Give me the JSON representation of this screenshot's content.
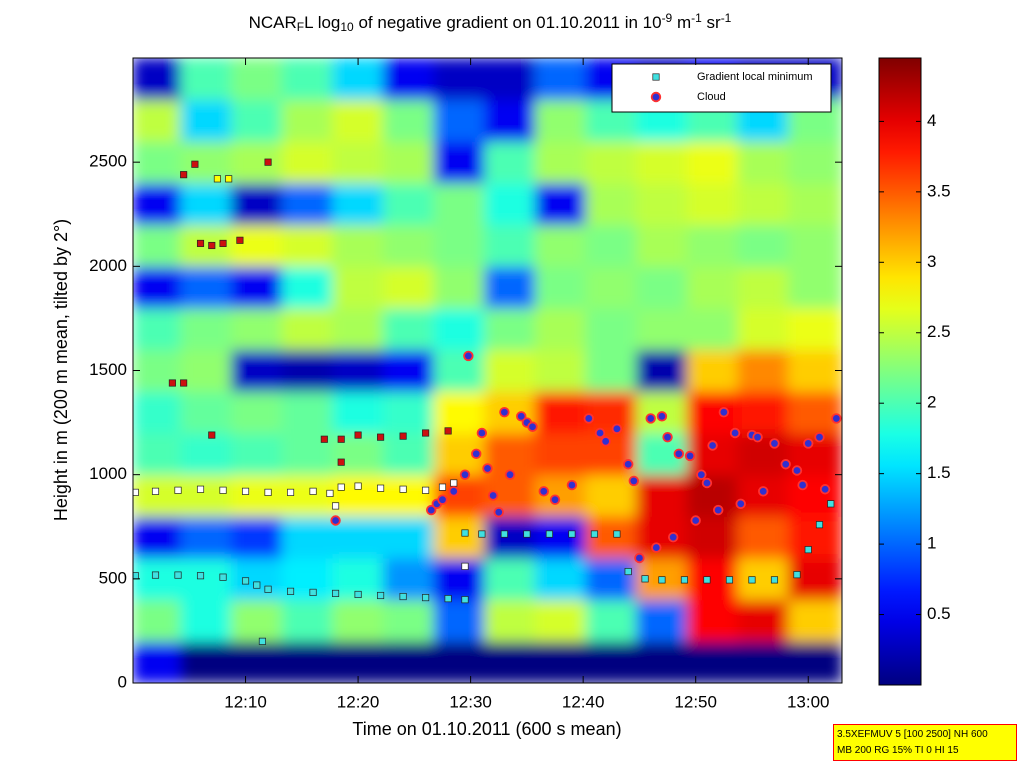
{
  "chart_data": {
    "type": "heatmap",
    "title_parts": [
      {
        "text": "NCAR"
      },
      {
        "text": "F",
        "shift": "sub"
      },
      {
        "text": "L log"
      },
      {
        "text": "10",
        "shift": "sub"
      },
      {
        "text": " of negative gradient on 01.10.2011 in 10"
      },
      {
        "text": "-9",
        "shift": "super"
      },
      {
        "text": " m"
      },
      {
        "text": "-1",
        "shift": "super"
      },
      {
        "text": " sr"
      },
      {
        "text": "-1",
        "shift": "super"
      }
    ],
    "x_label": "Time on 01.10.2011 (600 s mean)",
    "y_label": "Height in m (200 m mean, tilted by 2°)",
    "xlim": [
      720,
      783
    ],
    "xticks": [
      {
        "value": 730,
        "label": "12:10"
      },
      {
        "value": 740,
        "label": "12:20"
      },
      {
        "value": 750,
        "label": "12:30"
      },
      {
        "value": 760,
        "label": "12:40"
      },
      {
        "value": 770,
        "label": "12:50"
      },
      {
        "value": 780,
        "label": "13:00"
      }
    ],
    "ylim": [
      0,
      3000
    ],
    "yticks": [
      0,
      500,
      1000,
      1500,
      2000,
      2500
    ],
    "clim": [
      0,
      4.45
    ],
    "cticks": [
      0.5,
      1,
      1.5,
      2,
      2.5,
      3,
      3.5,
      4
    ],
    "colormap": "jet",
    "x": [
      722,
      726.5,
      731,
      735.5,
      740,
      744.5,
      749,
      753.5,
      758,
      762.5,
      767,
      771.5,
      776,
      780.5
    ],
    "y": [
      100,
      300,
      500,
      700,
      900,
      1100,
      1300,
      1500,
      1700,
      1900,
      2100,
      2300,
      2500,
      2700,
      2900
    ],
    "z": [
      [
        0.5,
        0,
        0,
        0,
        0,
        0,
        0,
        0,
        0,
        0,
        0,
        0,
        0,
        0
      ],
      [
        2.2,
        1.8,
        2.3,
        2.0,
        2.3,
        2.2,
        1.0,
        2.5,
        2.6,
        2.0,
        1.0,
        3.9,
        4.0,
        3.0
      ],
      [
        1.8,
        1.8,
        1.5,
        1.6,
        1.8,
        1.2,
        0.5,
        2.0,
        1.5,
        1.0,
        3.2,
        3.9,
        3.0,
        4.0
      ],
      [
        0.5,
        1.0,
        0.8,
        1.5,
        1.5,
        1.5,
        3.0,
        0.3,
        0.5,
        3.5,
        4.0,
        4.1,
        3.5,
        3.8
      ],
      [
        2.6,
        2.6,
        2.7,
        2.7,
        2.8,
        2.8,
        3.6,
        3.5,
        3.2,
        3.0,
        4.0,
        4.2,
        4.0,
        3.9
      ],
      [
        2.0,
        1.9,
        2.0,
        2.1,
        2.2,
        2.0,
        3.0,
        3.5,
        3.6,
        3.6,
        2.0,
        4.0,
        4.1,
        4.0
      ],
      [
        1.9,
        2.1,
        2.2,
        2.1,
        1.8,
        1.9,
        2.8,
        3.0,
        3.8,
        3.7,
        2.5,
        3.9,
        3.8,
        3.5
      ],
      [
        2.2,
        2.3,
        0.3,
        0.2,
        0.3,
        0.5,
        2.0,
        2.6,
        2.5,
        2.2,
        0.2,
        3.0,
        3.3,
        3.0
      ],
      [
        2.0,
        2.2,
        2.3,
        2.5,
        2.4,
        2.0,
        1.8,
        2.2,
        2.4,
        2.2,
        2.3,
        2.3,
        2.6,
        2.7
      ],
      [
        0.5,
        1.0,
        0.5,
        1.8,
        2.5,
        2.6,
        2.3,
        1.0,
        2.2,
        2.3,
        2.2,
        2.4,
        2.5,
        2.3
      ],
      [
        2.2,
        2.5,
        2.7,
        2.6,
        2.4,
        2.3,
        2.2,
        2.0,
        2.3,
        2.2,
        2.4,
        2.3,
        2.2,
        2.3
      ],
      [
        0.5,
        1.5,
        0.3,
        1.0,
        1.5,
        2.0,
        2.2,
        1.8,
        0.5,
        2.4,
        2.5,
        2.6,
        2.5,
        2.4
      ],
      [
        2.2,
        2.3,
        2.4,
        2.6,
        2.5,
        2.4,
        0.5,
        2.0,
        2.4,
        2.5,
        2.6,
        2.7,
        2.4,
        2.3
      ],
      [
        2.5,
        1.5,
        2.0,
        2.4,
        2.6,
        2.2,
        1.0,
        0.5,
        2.3,
        2.0,
        1.8,
        2.0,
        1.5,
        2.2
      ],
      [
        0.3,
        2.0,
        2.2,
        2.0,
        1.5,
        0.5,
        0.3,
        0.3,
        1.0,
        0.5,
        0.3,
        0.5,
        0.3,
        0.3
      ]
    ],
    "series": [
      {
        "name": "Gradient local minimum",
        "marker": "square",
        "color": "#40e0e0",
        "x": [
          720.2,
          722,
          724,
          726,
          728,
          730,
          731,
          732,
          734,
          736,
          738,
          740,
          742,
          744,
          746,
          748,
          749.5,
          731.5,
          720.2,
          722,
          724,
          726,
          728,
          730,
          732,
          734,
          736,
          737.5,
          738,
          738.5,
          740,
          742,
          744,
          746,
          747.5,
          748.5,
          749.5,
          749.5,
          751,
          753,
          755,
          757,
          759,
          761,
          763,
          764,
          765.5,
          767,
          769,
          771,
          773,
          775,
          777,
          779,
          780,
          781,
          782,
          724.5,
          725.5,
          732,
          726,
          727,
          728,
          729.5,
          723.5,
          724.5,
          727,
          737,
          738.5,
          738.5,
          740,
          742,
          744,
          746,
          748,
          727.5,
          728.5
        ],
        "values": [
          515,
          518,
          518,
          515,
          508,
          490,
          470,
          450,
          440,
          435,
          430,
          425,
          420,
          415,
          410,
          405,
          400,
          200,
          915,
          920,
          925,
          930,
          925,
          920,
          915,
          915,
          920,
          910,
          850,
          940,
          945,
          935,
          930,
          925,
          940,
          960,
          560,
          720,
          715,
          715,
          715,
          715,
          715,
          715,
          715,
          535,
          500,
          495,
          495,
          495,
          495,
          495,
          495,
          520,
          640,
          760,
          860,
          2440,
          2490,
          2500,
          2110,
          2100,
          2110,
          2125,
          1440,
          1440,
          1190,
          1170,
          1170,
          1060,
          1190,
          1180,
          1185,
          1200,
          1210,
          2420,
          2420
        ],
        "point_colors": [
          "#40e0e0",
          "#40e0e0",
          "#40e0e0",
          "#40e0e0",
          "#40e0e0",
          "#40e0e0",
          "#40e0e0",
          "#40e0e0",
          "#40e0e0",
          "#40e0e0",
          "#40e0e0",
          "#40e0e0",
          "#40e0e0",
          "#40e0e0",
          "#40e0e0",
          "#40e0e0",
          "#40e0e0",
          "#40e0e0",
          "#ffffff",
          "#ffffff",
          "#ffffff",
          "#ffffff",
          "#ffffff",
          "#ffffff",
          "#ffffff",
          "#ffffff",
          "#ffffff",
          "#ffffff",
          "#ffffff",
          "#ffffff",
          "#ffffff",
          "#ffffff",
          "#ffffff",
          "#ffffff",
          "#ffffff",
          "#ffffff",
          "#ffffff",
          "#40e0e0",
          "#40e0e0",
          "#40e0e0",
          "#40e0e0",
          "#40e0e0",
          "#40e0e0",
          "#40e0e0",
          "#40e0e0",
          "#40e0e0",
          "#40e0e0",
          "#40e0e0",
          "#40e0e0",
          "#40e0e0",
          "#40e0e0",
          "#40e0e0",
          "#40e0e0",
          "#40e0e0",
          "#40e0e0",
          "#40e0e0",
          "#40e0e0",
          "#cc1010",
          "#cc1010",
          "#cc1010",
          "#cc1010",
          "#cc1010",
          "#cc1010",
          "#cc1010",
          "#cc1010",
          "#cc1010",
          "#cc1010",
          "#cc1010",
          "#cc1010",
          "#cc1010",
          "#cc1010",
          "#cc1010",
          "#cc1010",
          "#cc1010",
          "#cc1010",
          "#ffff00",
          "#ffff00"
        ]
      },
      {
        "name": "Cloud",
        "marker": "circle",
        "color": "#3030d0",
        "edge_color": "#ff3030",
        "x": [
          738,
          746.5,
          747,
          747.5,
          748.5,
          749.5,
          749.8,
          750.5,
          751,
          751.5,
          752,
          752.5,
          753,
          753.5,
          754.5,
          755,
          755.5,
          756.5,
          757.5,
          759,
          760.5,
          761.5,
          762,
          763,
          764,
          764.5,
          765,
          766,
          766.5,
          767,
          767.5,
          768,
          768.5,
          769.5,
          770,
          770.5,
          771,
          771.5,
          772,
          772.5,
          773.5,
          774,
          775,
          775.5,
          776,
          777,
          778,
          779,
          779.5,
          780,
          781,
          781.5,
          782.5
        ],
        "values": [
          780,
          830,
          860,
          880,
          920,
          1000,
          1570,
          1100,
          1200,
          1030,
          900,
          820,
          1300,
          1000,
          1280,
          1250,
          1230,
          920,
          880,
          950,
          1270,
          1200,
          1160,
          1220,
          1050,
          970,
          600,
          1270,
          650,
          1280,
          1180,
          700,
          1100,
          1090,
          780,
          1000,
          960,
          1140,
          830,
          1300,
          1200,
          860,
          1190,
          1180,
          920,
          1150,
          1050,
          1020,
          950,
          1150,
          1180,
          930,
          1270
        ]
      }
    ],
    "legend": "upper right",
    "info_lines": [
      "3.5XEFMUV 5 [100 2500] NH 600",
      "MB 200 RG 15% TI 0 HI 15"
    ]
  }
}
